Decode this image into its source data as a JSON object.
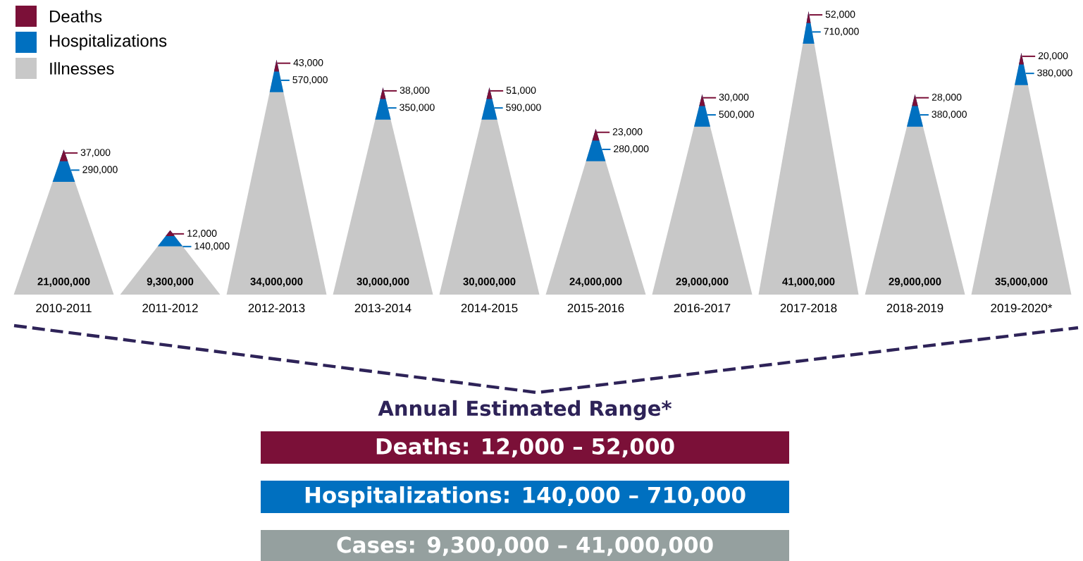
{
  "chart_data": {
    "type": "other",
    "categories": [
      "2010-2011",
      "2011-2012",
      "2012-2013",
      "2013-2014",
      "2014-2015",
      "2015-2016",
      "2016-2017",
      "2017-2018",
      "2018-2019",
      "2019-2020*"
    ],
    "series": [
      {
        "name": "Deaths",
        "color": "#7b1038",
        "values": [
          37000,
          12000,
          43000,
          38000,
          51000,
          23000,
          30000,
          52000,
          28000,
          20000
        ],
        "value_labels": [
          "37,000",
          "12,000",
          "43,000",
          "38,000",
          "51,000",
          "23,000",
          "30,000",
          "52,000",
          "28,000",
          "20,000"
        ]
      },
      {
        "name": "Hospitalizations",
        "color": "#0070c0",
        "values": [
          290000,
          140000,
          570000,
          350000,
          590000,
          280000,
          500000,
          710000,
          380000,
          380000
        ],
        "value_labels": [
          "290,000",
          "140,000",
          "570,000",
          "350,000",
          "590,000",
          "280,000",
          "500,000",
          "710,000",
          "380,000",
          "380,000"
        ]
      },
      {
        "name": "Illnesses",
        "color": "#c8c8c8",
        "values": [
          21000000,
          9300000,
          34000000,
          30000000,
          30000000,
          24000000,
          29000000,
          41000000,
          29000000,
          35000000
        ],
        "value_labels": [
          "21,000,000",
          "9,300,000",
          "34,000,000",
          "30,000,000",
          "30,000,000",
          "24,000,000",
          "29,000,000",
          "41,000,000",
          "29,000,000",
          "35,000,000"
        ]
      }
    ],
    "legend": "top left",
    "annotations": [
      "Annual Estimated Range*",
      "Deaths: 12,000 – 52,000",
      "Hospitalizations: 140,000 – 710,000",
      "Cases: 9,300,000 – 41,000,000"
    ]
  }
}
